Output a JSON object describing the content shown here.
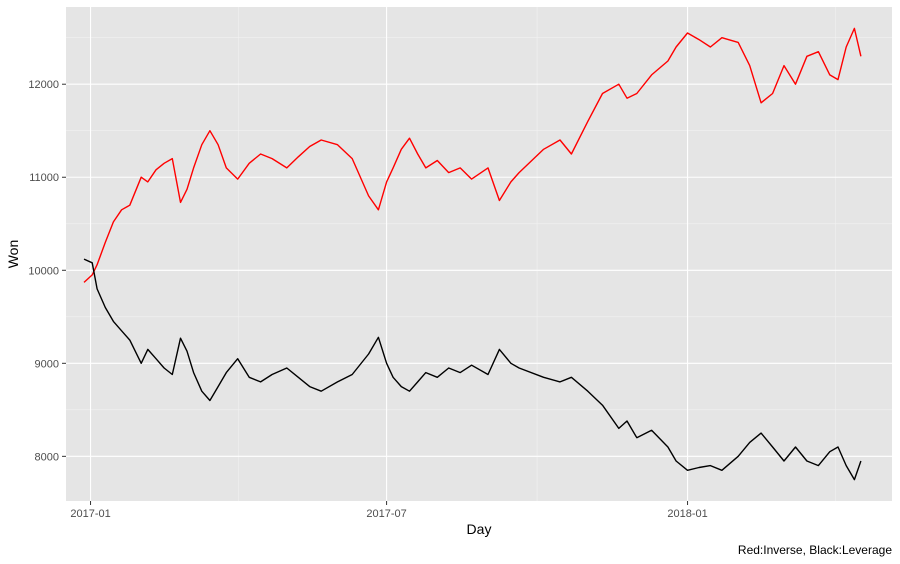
{
  "chart_data": {
    "type": "line",
    "xlabel": "Day",
    "ylabel": "Won",
    "caption": "Red:Inverse, Black:Leverage",
    "x_ticks": [
      "2017-01",
      "2017-07",
      "2018-01"
    ],
    "y_ticks": [
      "8000",
      "9000",
      "10000",
      "11000",
      "12000"
    ],
    "xlim": [
      "2016-12-17",
      "2018-05-06"
    ],
    "ylim": [
      7520,
      12830
    ],
    "grid": true,
    "colors": {
      "panel": "#e5e5e5",
      "grid_major": "#ffffff",
      "grid_minor": "#f2f2f2",
      "inverse": "#ff0000",
      "leverage": "#000000"
    },
    "series": [
      {
        "name": "Inverse",
        "color": "#ff0000",
        "x": [
          "2016-12-28",
          "2017-01-02",
          "2017-01-05",
          "2017-01-10",
          "2017-01-15",
          "2017-01-20",
          "2017-01-25",
          "2017-02-01",
          "2017-02-05",
          "2017-02-10",
          "2017-02-15",
          "2017-02-20",
          "2017-02-25",
          "2017-03-01",
          "2017-03-05",
          "2017-03-10",
          "2017-03-15",
          "2017-03-20",
          "2017-03-25",
          "2017-04-01",
          "2017-04-08",
          "2017-04-15",
          "2017-04-22",
          "2017-05-01",
          "2017-05-08",
          "2017-05-15",
          "2017-05-22",
          "2017-06-01",
          "2017-06-10",
          "2017-06-20",
          "2017-06-26",
          "2017-07-01",
          "2017-07-05",
          "2017-07-10",
          "2017-07-15",
          "2017-07-20",
          "2017-07-25",
          "2017-08-01",
          "2017-08-08",
          "2017-08-15",
          "2017-08-22",
          "2017-09-01",
          "2017-09-08",
          "2017-09-15",
          "2017-09-20",
          "2017-10-05",
          "2017-10-15",
          "2017-10-22",
          "2017-11-01",
          "2017-11-10",
          "2017-11-20",
          "2017-11-25",
          "2017-12-01",
          "2017-12-10",
          "2017-12-20",
          "2017-12-25",
          "2018-01-01",
          "2018-01-08",
          "2018-01-15",
          "2018-01-22",
          "2018-02-01",
          "2018-02-08",
          "2018-02-15",
          "2018-02-22",
          "2018-03-01",
          "2018-03-08",
          "2018-03-15",
          "2018-03-22",
          "2018-03-29",
          "2018-04-03",
          "2018-04-08",
          "2018-04-13",
          "2018-04-17"
        ],
        "values": [
          9870,
          9950,
          10060,
          10300,
          10520,
          10650,
          10700,
          11000,
          10950,
          11080,
          11150,
          11200,
          10730,
          10870,
          11100,
          11350,
          11500,
          11350,
          11100,
          10980,
          11150,
          11250,
          11200,
          11100,
          11220,
          11330,
          11400,
          11350,
          11200,
          10800,
          10650,
          10950,
          11100,
          11300,
          11420,
          11250,
          11100,
          11180,
          11050,
          11100,
          10980,
          11100,
          10750,
          10950,
          11050,
          11300,
          11400,
          11250,
          11600,
          11900,
          12000,
          11850,
          11900,
          12100,
          12250,
          12400,
          12550,
          12480,
          12400,
          12500,
          12450,
          12200,
          11800,
          11900,
          12200,
          12000,
          12300,
          12350,
          12100,
          12050,
          12400,
          12600,
          12300
        ]
      },
      {
        "name": "Leverage",
        "color": "#000000",
        "x": [
          "2016-12-28",
          "2017-01-02",
          "2017-01-05",
          "2017-01-10",
          "2017-01-15",
          "2017-01-20",
          "2017-01-25",
          "2017-02-01",
          "2017-02-05",
          "2017-02-10",
          "2017-02-15",
          "2017-02-20",
          "2017-02-25",
          "2017-03-01",
          "2017-03-05",
          "2017-03-10",
          "2017-03-15",
          "2017-03-20",
          "2017-03-25",
          "2017-04-01",
          "2017-04-08",
          "2017-04-15",
          "2017-04-22",
          "2017-05-01",
          "2017-05-08",
          "2017-05-15",
          "2017-05-22",
          "2017-06-01",
          "2017-06-10",
          "2017-06-20",
          "2017-06-26",
          "2017-07-01",
          "2017-07-05",
          "2017-07-10",
          "2017-07-15",
          "2017-07-20",
          "2017-07-25",
          "2017-08-01",
          "2017-08-08",
          "2017-08-15",
          "2017-08-22",
          "2017-09-01",
          "2017-09-08",
          "2017-09-15",
          "2017-09-20",
          "2017-10-05",
          "2017-10-15",
          "2017-10-22",
          "2017-11-01",
          "2017-11-10",
          "2017-11-20",
          "2017-11-25",
          "2017-12-01",
          "2017-12-10",
          "2017-12-20",
          "2017-12-25",
          "2018-01-01",
          "2018-01-08",
          "2018-01-15",
          "2018-01-22",
          "2018-02-01",
          "2018-02-08",
          "2018-02-15",
          "2018-02-22",
          "2018-03-01",
          "2018-03-08",
          "2018-03-15",
          "2018-03-22",
          "2018-03-29",
          "2018-04-03",
          "2018-04-08",
          "2018-04-13",
          "2018-04-17"
        ],
        "values": [
          10120,
          10080,
          9800,
          9600,
          9450,
          9350,
          9250,
          9000,
          9150,
          9050,
          8950,
          8880,
          9270,
          9130,
          8900,
          8700,
          8600,
          8750,
          8900,
          9050,
          8850,
          8800,
          8880,
          8950,
          8850,
          8750,
          8700,
          8800,
          8880,
          9100,
          9280,
          9000,
          8850,
          8750,
          8700,
          8800,
          8900,
          8850,
          8950,
          8900,
          8980,
          8880,
          9150,
          9000,
          8950,
          8850,
          8800,
          8850,
          8700,
          8550,
          8300,
          8380,
          8200,
          8280,
          8100,
          7950,
          7850,
          7880,
          7900,
          7850,
          8000,
          8150,
          8250,
          8100,
          7950,
          8100,
          7950,
          7900,
          8050,
          8100,
          7900,
          7750,
          7950
        ]
      }
    ]
  }
}
